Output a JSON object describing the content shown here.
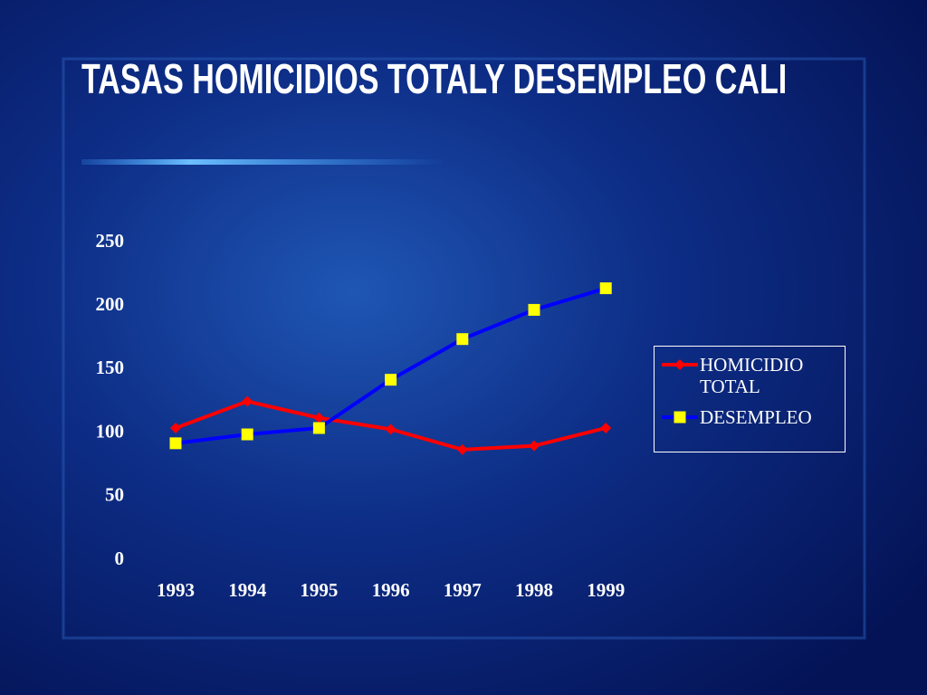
{
  "chart_data": {
    "type": "line",
    "title": "TASAS HOMICIDIOS TOTALY DESEMPLEO CALI",
    "categories": [
      "1993",
      "1994",
      "1995",
      "1996",
      "1997",
      "1998",
      "1999"
    ],
    "series": [
      {
        "name": "HOMICIDIO TOTAL",
        "color": "#ff0000",
        "marker": "diamond",
        "marker_color": "#ff0000",
        "values": [
          104,
          125,
          112,
          103,
          87,
          90,
          104
        ]
      },
      {
        "name": "DESEMPLEO",
        "color": "#0000ff",
        "marker": "square",
        "marker_color": "#ffff00",
        "values": [
          92,
          99,
          104,
          142,
          174,
          197,
          214
        ]
      }
    ],
    "ylim": [
      0,
      250
    ],
    "yticks": [
      0,
      50,
      100,
      150,
      200,
      250
    ],
    "grid": false,
    "legend": "right"
  }
}
